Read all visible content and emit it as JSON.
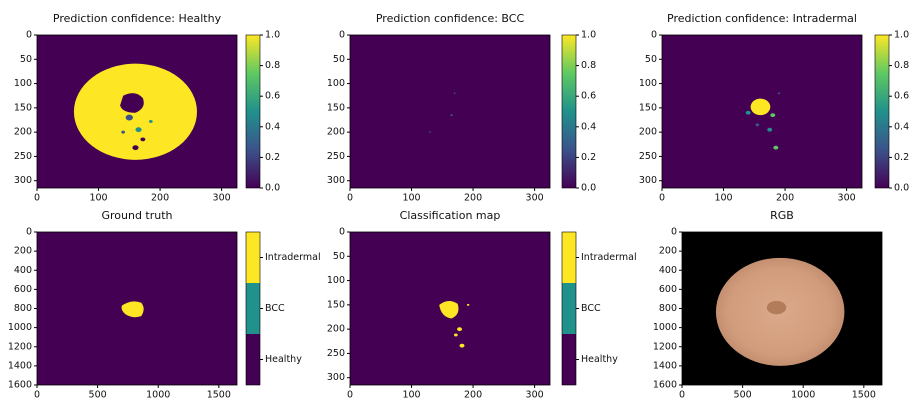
{
  "chart_data": [
    {
      "type": "heatmap",
      "title": "Prediction confidence: Healthy",
      "xlim": [
        0,
        325
      ],
      "ylim": [
        315,
        0
      ],
      "xticks": [
        0,
        100,
        200,
        300
      ],
      "yticks": [
        0,
        50,
        100,
        150,
        200,
        250,
        300
      ],
      "colorbar": {
        "lim": [
          0,
          1
        ],
        "ticks": [
          {
            "value": 0,
            "label": "0.0"
          },
          0.2,
          0.4,
          0.6,
          0.8,
          {
            "value": 1,
            "label": "1.0"
          }
        ],
        "colors": [
          "#440154",
          "#3b528b",
          "#21918c",
          "#5ec962",
          "#fde725"
        ]
      }
    },
    {
      "type": "heatmap",
      "title": "Prediction confidence: BCC",
      "xlim": [
        0,
        325
      ],
      "ylim": [
        315,
        0
      ],
      "xticks": [
        0,
        100,
        200,
        300
      ],
      "yticks": [
        0,
        50,
        100,
        150,
        200,
        250,
        300
      ],
      "colorbar": {
        "lim": [
          0,
          1
        ],
        "ticks": [
          {
            "value": 0,
            "label": "0.0"
          },
          0.2,
          0.4,
          0.6,
          0.8,
          {
            "value": 1,
            "label": "1.0"
          }
        ],
        "colors": [
          "#440154",
          "#3b528b",
          "#21918c",
          "#5ec962",
          "#fde725"
        ]
      }
    },
    {
      "type": "heatmap",
      "title": "Prediction confidence: Intradermal",
      "xlim": [
        0,
        325
      ],
      "ylim": [
        315,
        0
      ],
      "xticks": [
        0,
        100,
        200,
        300
      ],
      "yticks": [
        0,
        50,
        100,
        150,
        200,
        250,
        300
      ],
      "colorbar": {
        "lim": [
          0,
          1
        ],
        "ticks": [
          {
            "value": 0,
            "label": "0.0"
          },
          0.2,
          0.4,
          0.6,
          0.8,
          {
            "value": 1,
            "label": "1.0"
          }
        ],
        "colors": [
          "#440154",
          "#3b528b",
          "#21918c",
          "#5ec962",
          "#fde725"
        ]
      }
    },
    {
      "type": "labelmap",
      "title": "Ground truth",
      "xlim": [
        0,
        1650
      ],
      "ylim": [
        1600,
        0
      ],
      "xticks": [
        0,
        500,
        1000,
        1500
      ],
      "yticks": [
        0,
        200,
        400,
        600,
        800,
        1000,
        1200,
        1400,
        1600
      ],
      "colorbar": {
        "labels": [
          "Healthy",
          "BCC",
          "Intradermal"
        ],
        "colors": [
          "#440154",
          "#21918c",
          "#fde725"
        ]
      }
    },
    {
      "type": "labelmap",
      "title": "Classification map",
      "xlim": [
        0,
        325
      ],
      "ylim": [
        315,
        0
      ],
      "xticks": [
        0,
        100,
        200,
        300
      ],
      "yticks": [
        0,
        50,
        100,
        150,
        200,
        250,
        300
      ],
      "colorbar": {
        "labels": [
          "Healthy",
          "BCC",
          "Intradermal"
        ],
        "colors": [
          "#440154",
          "#21918c",
          "#fde725"
        ]
      }
    },
    {
      "type": "image",
      "title": "RGB",
      "xlim": [
        0,
        1650
      ],
      "ylim": [
        1600,
        0
      ],
      "xticks": [
        0,
        500,
        1000,
        1500
      ],
      "yticks": [
        0,
        200,
        400,
        600,
        800,
        1000,
        1200,
        1400,
        1600
      ]
    }
  ]
}
